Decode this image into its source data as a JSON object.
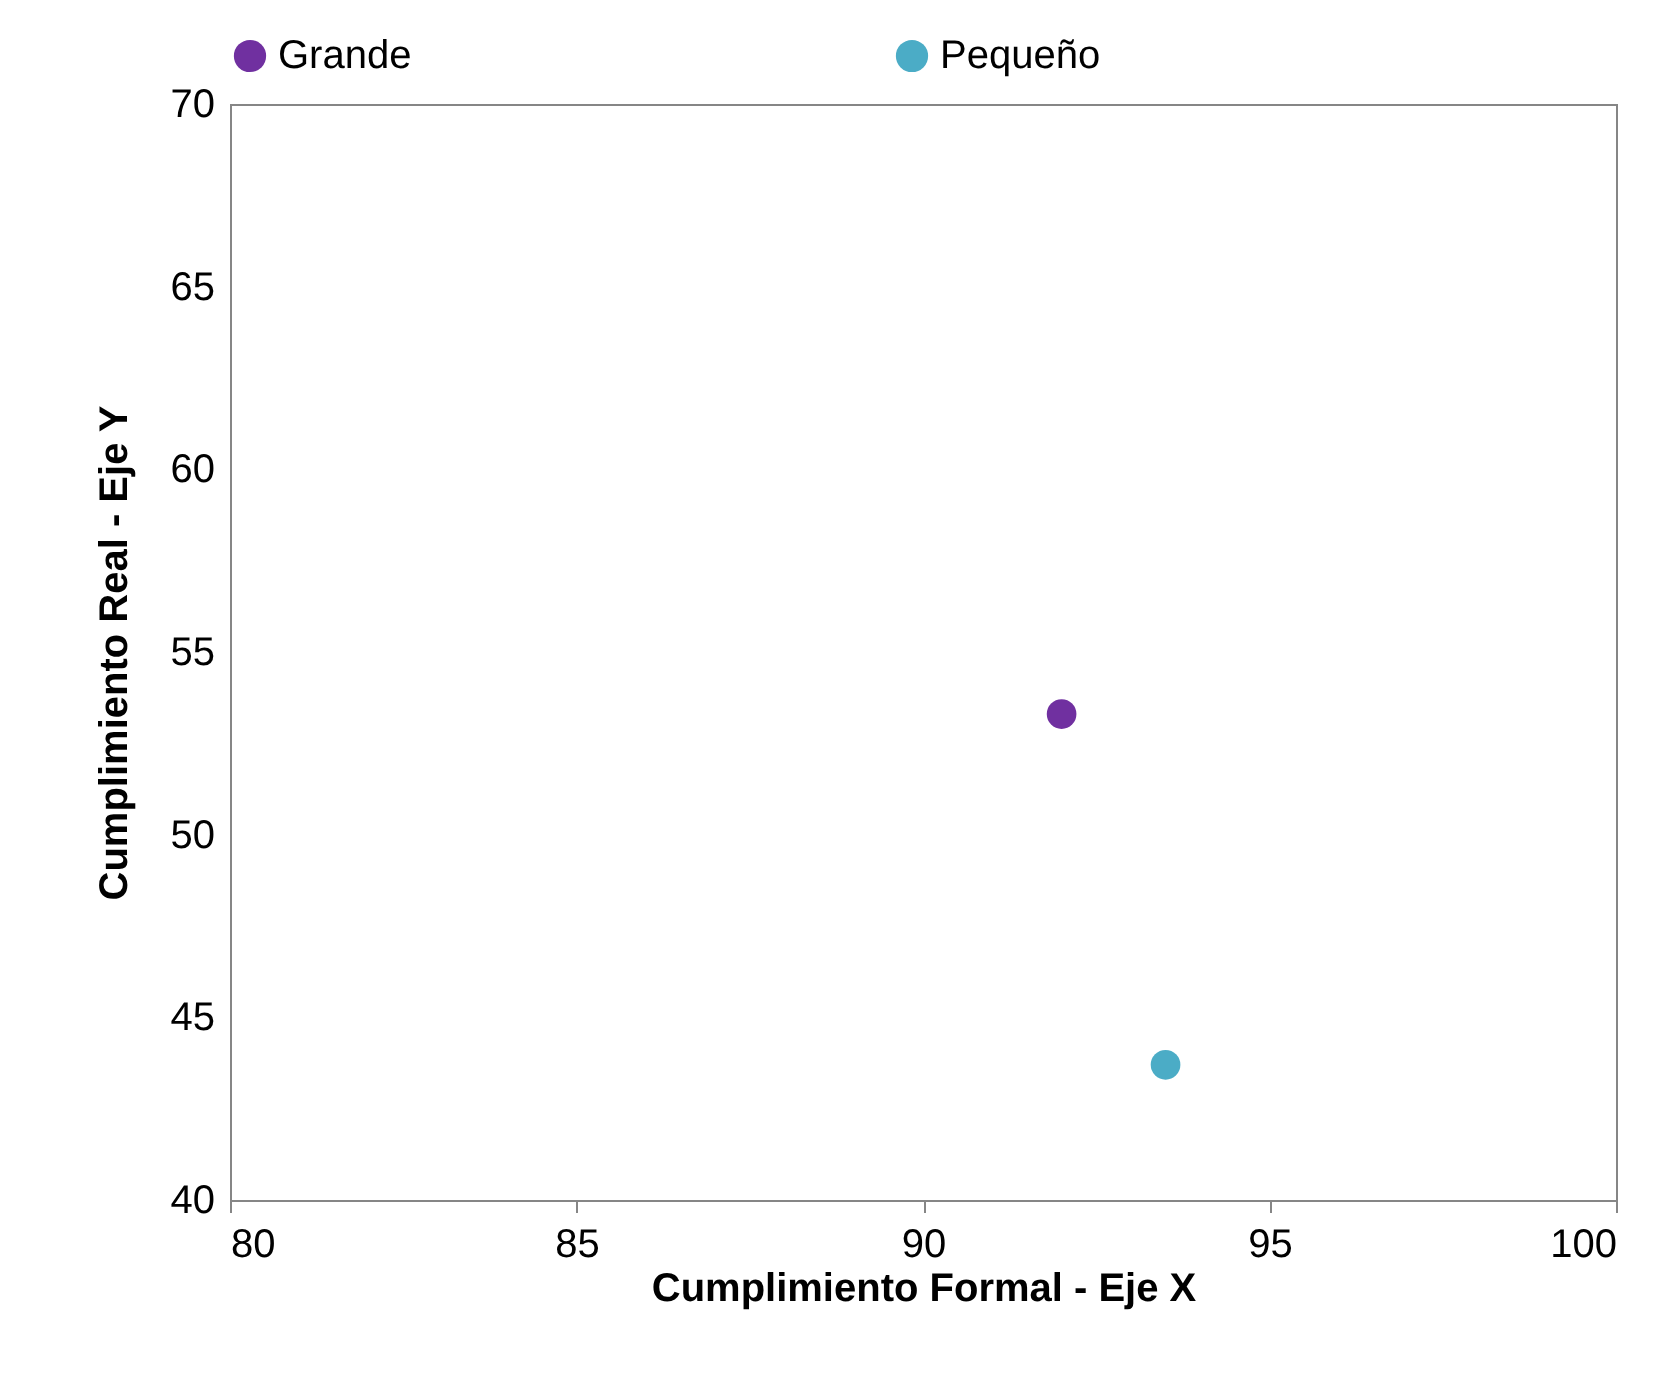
{
  "chart_data": {
    "type": "scatter",
    "xlabel": "Cumplimiento Formal - Eje X",
    "ylabel": "Cumplimiento Real - Eje Y",
    "series": [
      {
        "name": "Grande",
        "color": "#7030a0",
        "x": [
          92.0
        ],
        "values": [
          53.3
        ]
      },
      {
        "name": "Pequeño",
        "color": "#4bacc6",
        "x": [
          93.5
        ],
        "values": [
          43.7
        ]
      }
    ],
    "xlim": [
      80,
      100
    ],
    "xticks": [
      80,
      85,
      90,
      95,
      100
    ],
    "ylim": [
      40,
      70
    ],
    "yticks": [
      40,
      45,
      50,
      55,
      60,
      65,
      70
    ],
    "grid": false,
    "legend": "top",
    "marker": "circle"
  }
}
